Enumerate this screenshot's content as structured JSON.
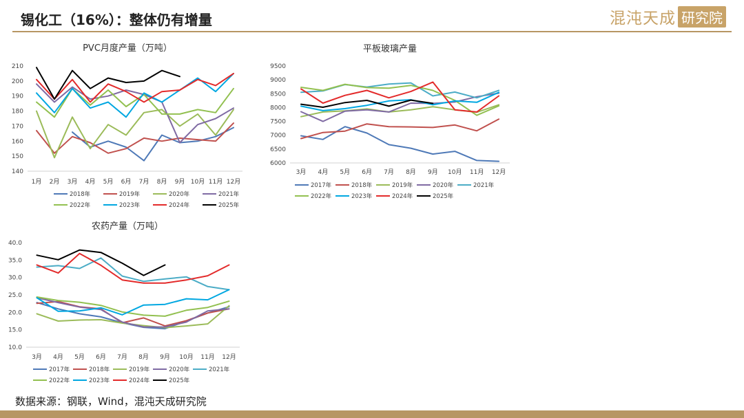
{
  "header": {
    "title": "锡化工（16%）：整体仍有增量",
    "logo_script": "混沌天成",
    "logo_box": "研究院"
  },
  "footer": {
    "source": "数据来源：钢联，Wind，混沌天成研究院"
  },
  "colors": {
    "accent": "#b79663"
  },
  "chart_data": [
    {
      "type": "line",
      "title": "PVC月度产量（万吨）",
      "categories": [
        "1月",
        "2月",
        "3月",
        "4月",
        "5月",
        "6月",
        "7月",
        "8月",
        "9月",
        "10月",
        "11月",
        "12月"
      ],
      "ylim": [
        140,
        210
      ],
      "yticks": [
        140,
        150,
        160,
        170,
        180,
        190,
        200,
        210
      ],
      "grid": false,
      "legend_position": "bottom",
      "series": [
        {
          "name": "2018年",
          "color": "#4e79b7",
          "values": [
            null,
            null,
            166,
            156,
            160,
            156,
            147,
            164,
            159,
            160,
            163,
            169
          ]
        },
        {
          "name": "2019年",
          "color": "#c0504d",
          "values": [
            167,
            152,
            163,
            159,
            152,
            155,
            162,
            160,
            162,
            161,
            160,
            172
          ]
        },
        {
          "name": "2020年",
          "color": "#9bbb59",
          "values": [
            180,
            149,
            176,
            155,
            171,
            164,
            179,
            181,
            170,
            178,
            164,
            181
          ]
        },
        {
          "name": "2021年",
          "color": "#7f6aa3",
          "values": [
            198,
            186,
            196,
            188,
            190,
            194,
            191,
            186,
            159,
            171,
            175,
            182
          ]
        },
        {
          "name": "2022年",
          "color": "#92c050",
          "values": [
            186,
            176,
            195,
            184,
            194,
            183,
            191,
            178,
            178,
            181,
            179,
            195
          ]
        },
        {
          "name": "2023年",
          "color": "#00a7e1",
          "values": [
            192,
            179,
            195,
            182,
            186,
            176,
            192,
            186,
            194,
            202,
            193,
            205
          ]
        },
        {
          "name": "2024年",
          "color": "#e32a2a",
          "values": [
            201,
            188,
            201,
            186,
            198,
            193,
            186,
            193,
            194,
            201,
            197,
            205
          ]
        },
        {
          "name": "2025年",
          "color": "#000000",
          "values": [
            209,
            188,
            207,
            195,
            202,
            199,
            200,
            207,
            203,
            null,
            null,
            null
          ]
        }
      ]
    },
    {
      "type": "line",
      "title": "平板玻璃产量",
      "categories": [
        "3月",
        "4月",
        "5月",
        "6月",
        "7月",
        "8月",
        "9月",
        "10月",
        "11月",
        "12月"
      ],
      "ylim": [
        6000,
        9500
      ],
      "yticks": [
        6000,
        6500,
        7000,
        7500,
        8000,
        8500,
        9000,
        9500
      ],
      "grid": false,
      "legend_position": "bottom",
      "series": [
        {
          "name": "2017年",
          "color": "#4e79b7",
          "values": [
            6980,
            6850,
            7310,
            7080,
            6660,
            6530,
            6320,
            6420,
            6090,
            6060
          ]
        },
        {
          "name": "2018年",
          "color": "#c0504d",
          "values": [
            6880,
            7100,
            7150,
            7410,
            7310,
            7300,
            7280,
            7370,
            7160,
            7580
          ]
        },
        {
          "name": "2019年",
          "color": "#9bbb59",
          "values": [
            7670,
            7840,
            7880,
            7950,
            7840,
            7920,
            8030,
            7920,
            7830,
            8100
          ]
        },
        {
          "name": "2020年",
          "color": "#7f6aa3",
          "values": [
            7850,
            7500,
            7870,
            7920,
            7840,
            8160,
            8150,
            8200,
            8390,
            8520
          ]
        },
        {
          "name": "2021年",
          "color": "#4bacc6",
          "values": [
            8550,
            8600,
            8830,
            8740,
            8850,
            8890,
            8420,
            8560,
            8350,
            8620
          ]
        },
        {
          "name": "2022年",
          "color": "#92c050",
          "values": [
            8730,
            8620,
            8840,
            8720,
            8700,
            8800,
            8620,
            8260,
            7720,
            8060
          ]
        },
        {
          "name": "2023年",
          "color": "#00a7e1",
          "values": [
            8050,
            7890,
            7960,
            8080,
            8240,
            8280,
            8100,
            8240,
            8190,
            8550
          ]
        },
        {
          "name": "2024年",
          "color": "#e32a2a",
          "values": [
            8670,
            8160,
            8440,
            8620,
            8350,
            8580,
            8920,
            7920,
            7840,
            8420
          ]
        },
        {
          "name": "2025年",
          "color": "#000000",
          "values": [
            8120,
            8010,
            8180,
            8260,
            8050,
            8270,
            8150,
            null,
            null,
            null
          ]
        }
      ]
    },
    {
      "type": "line",
      "title": "农药产量（万吨）",
      "categories": [
        "3月",
        "4月",
        "5月",
        "6月",
        "7月",
        "8月",
        "9月",
        "10月",
        "11月",
        "12月"
      ],
      "ylim": [
        10,
        40
      ],
      "yticks": [
        "10.0",
        "15.0",
        "20.0",
        "25.0",
        "30.0",
        "35.0",
        "40.0"
      ],
      "grid": false,
      "legend_position": "bottom",
      "series": [
        {
          "name": "2017年",
          "color": "#4e79b7",
          "values": [
            22.8,
            21.0,
            19.6,
            18.7,
            17.0,
            15.7,
            15.3,
            17.5,
            19.8,
            21.6
          ]
        },
        {
          "name": "2018年",
          "color": "#c0504d",
          "values": [
            22.6,
            23.1,
            21.6,
            21.0,
            17.0,
            18.4,
            16.1,
            17.6,
            19.8,
            21.0
          ]
        },
        {
          "name": "2019年",
          "color": "#9bbb59",
          "values": [
            19.6,
            17.5,
            17.8,
            17.9,
            16.9,
            16.2,
            15.6,
            16.1,
            16.7,
            21.9
          ]
        },
        {
          "name": "2020年",
          "color": "#7f6aa3",
          "values": [
            24.2,
            22.8,
            21.5,
            20.8,
            17.2,
            15.8,
            15.8,
            17.2,
            20.4,
            21.0
          ]
        },
        {
          "name": "2021年",
          "color": "#4bacc6",
          "values": [
            33.0,
            33.4,
            32.6,
            35.6,
            30.4,
            28.9,
            29.6,
            30.2,
            27.4,
            26.5
          ]
        },
        {
          "name": "2022年",
          "color": "#92c050",
          "values": [
            24.4,
            23.4,
            22.9,
            22.0,
            20.1,
            19.2,
            18.9,
            20.6,
            21.4,
            23.2
          ]
        },
        {
          "name": "2023年",
          "color": "#00a7e1",
          "values": [
            24.2,
            20.3,
            20.4,
            21.3,
            19.3,
            22.1,
            22.3,
            23.9,
            23.6,
            26.5
          ]
        },
        {
          "name": "2024年",
          "color": "#e32a2a",
          "values": [
            33.6,
            31.3,
            36.9,
            33.5,
            29.3,
            28.4,
            28.4,
            29.3,
            30.5,
            33.6
          ]
        },
        {
          "name": "2025年",
          "color": "#000000",
          "values": [
            36.4,
            35.1,
            37.9,
            37.2,
            34.1,
            30.6,
            33.6,
            null,
            null,
            null
          ]
        }
      ]
    }
  ]
}
